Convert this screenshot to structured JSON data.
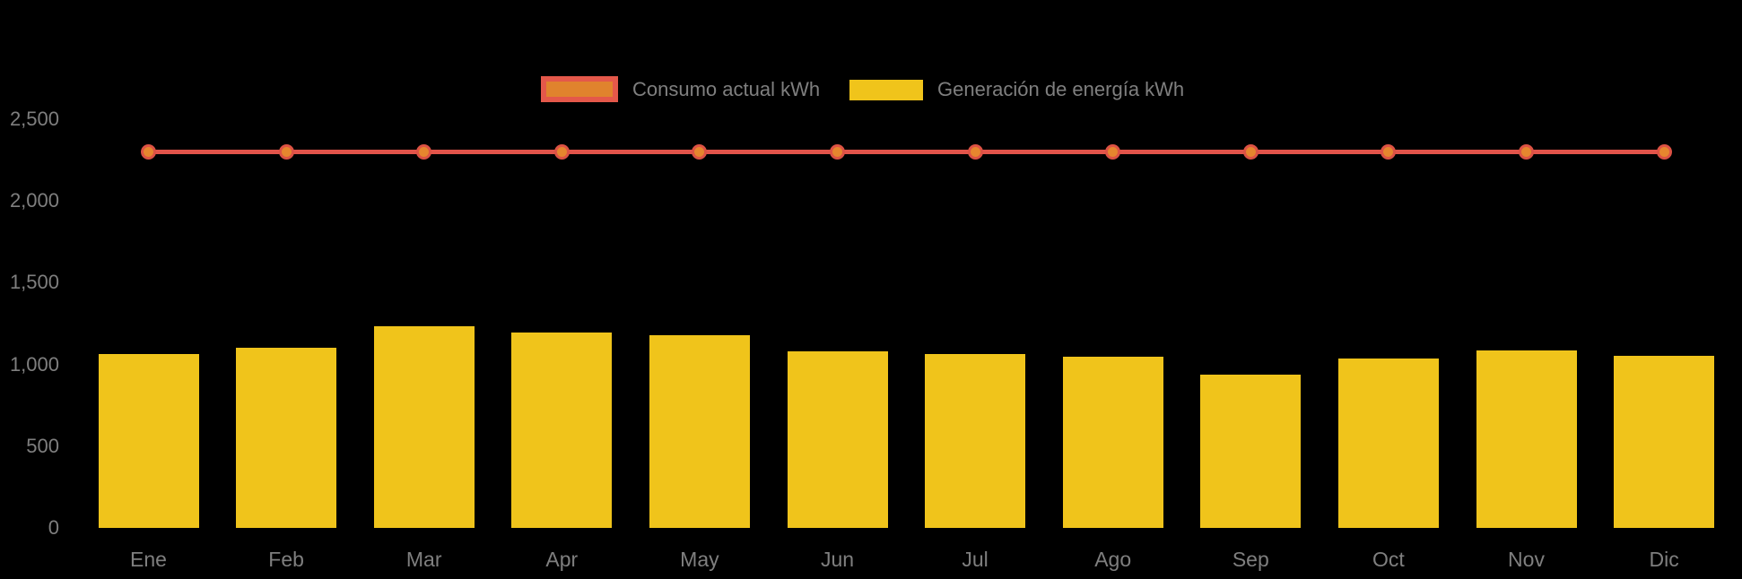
{
  "legend": {
    "items": [
      {
        "label": "Consumo actual kWh",
        "swatch_fill": "#e0832d",
        "swatch_border": "#e4584a"
      },
      {
        "label": "Generación de energía kWh",
        "swatch_fill": "#f0c41b",
        "swatch_border": ""
      }
    ]
  },
  "chart_data": {
    "type": "combo",
    "categories": [
      "Ene",
      "Feb",
      "Mar",
      "Apr",
      "May",
      "Jun",
      "Jul",
      "Ago",
      "Sep",
      "Oct",
      "Nov",
      "Dic"
    ],
    "series": [
      {
        "name": "Consumo actual kWh",
        "type": "line",
        "color": "#e2544a",
        "point_color": "#e6862e",
        "values": [
          2300,
          2300,
          2300,
          2300,
          2300,
          2300,
          2300,
          2300,
          2300,
          2300,
          2300,
          2300
        ]
      },
      {
        "name": "Generación de energía kWh",
        "type": "bar",
        "color": "#f0c41b",
        "values": [
          1065,
          1100,
          1235,
          1195,
          1180,
          1080,
          1065,
          1045,
          940,
          1035,
          1085,
          1055
        ]
      }
    ],
    "title": "",
    "xlabel": "",
    "ylabel": "",
    "ylim": [
      0,
      2500
    ],
    "y_tick_values": [
      0,
      500,
      1000,
      1500,
      2000,
      2500
    ],
    "y_tick_labels": [
      "0",
      "500",
      "1,000",
      "1,500",
      "2,000",
      "2,500"
    ],
    "grid": false,
    "legend_position": "top",
    "background_color": "#000000",
    "text_color": "#7f7f7f"
  }
}
